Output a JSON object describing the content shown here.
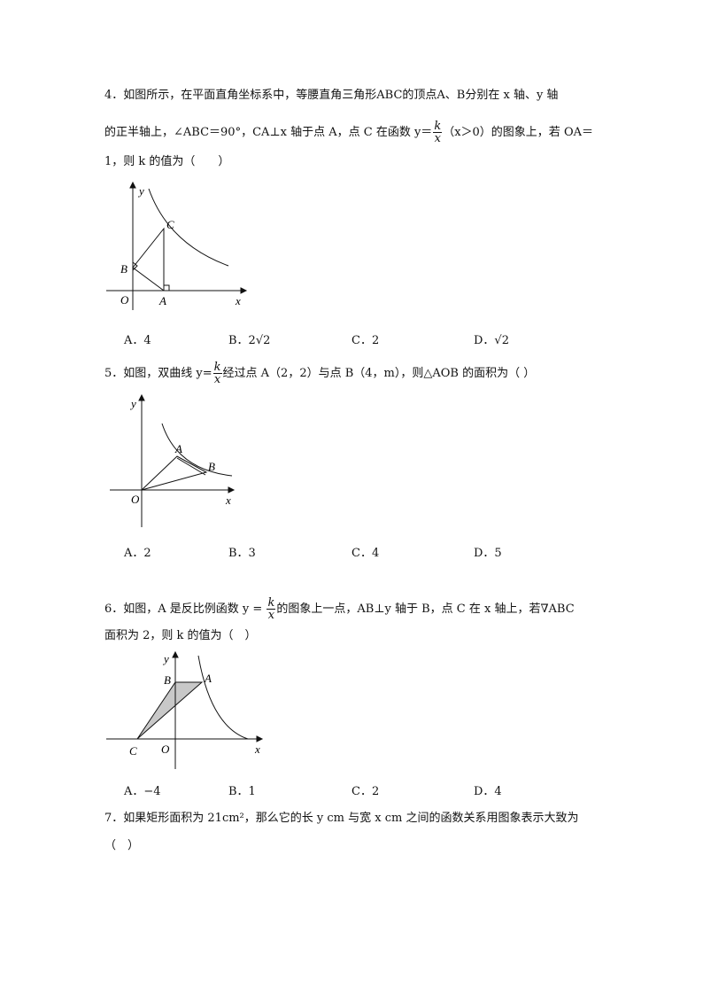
{
  "questions": [
    {
      "number": "4",
      "line1": "4．如图所示，在平面直角坐标系中，等腰直角三角形ABC的顶点A、B分别在 x 轴、y 轴",
      "line2a": "的正半轴上，∠ABC＝90°，CA⊥x 轴于点 A，点 C 在函数 y＝",
      "frac_num": "k",
      "frac_den": "x",
      "line2b": "（x＞0）的图象上，若 OA＝",
      "line3": "1，则 k 的值为（　　）",
      "options": [
        "A．4",
        "B．2√2",
        "C．2",
        "D．√2"
      ],
      "figure_labels": {
        "y": "y",
        "x": "x",
        "O": "O",
        "A": "A",
        "B": "B",
        "C": "C"
      }
    },
    {
      "number": "5",
      "line1a": "5．如图，双曲线 y=",
      "frac_num": "k",
      "frac_den": "x",
      "line1b": "经过点 A（2，2）与点 B（4，m），则△AOB 的面积为（ ）",
      "options": [
        "A．2",
        "B．3",
        "C．4",
        "D．5"
      ],
      "figure_labels": {
        "y": "y",
        "x": "x",
        "O": "O",
        "A": "A",
        "B": "B"
      }
    },
    {
      "number": "6",
      "line1a": "6．如图，A 是反比例函数 y = ",
      "frac_num": "k",
      "frac_den": "x",
      "line1b": "的图象上一点，AB⊥y 轴于 B，点 C 在 x 轴上，若∇ABC",
      "line2": "面积为 2，则 k 的值为（　）",
      "options": [
        "A．−4",
        "B．1",
        "C．2",
        "D．4"
      ],
      "figure_labels": {
        "y": "y",
        "x": "x",
        "O": "O",
        "A": "A",
        "B": "B",
        "C": "C"
      }
    },
    {
      "number": "7",
      "line1": "7．如果矩形面积为 21cm²，那么它的长 y cm 与宽 x cm 之间的函数关系用图象表示大致为",
      "line2": "（　）"
    }
  ]
}
